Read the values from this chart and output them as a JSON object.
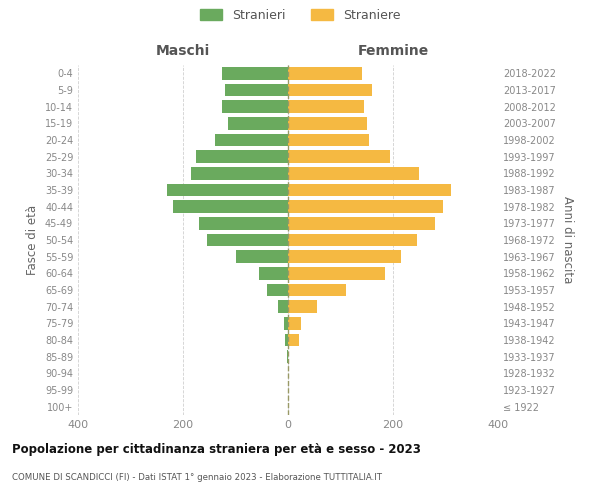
{
  "age_groups": [
    "100+",
    "95-99",
    "90-94",
    "85-89",
    "80-84",
    "75-79",
    "70-74",
    "65-69",
    "60-64",
    "55-59",
    "50-54",
    "45-49",
    "40-44",
    "35-39",
    "30-34",
    "25-29",
    "20-24",
    "15-19",
    "10-14",
    "5-9",
    "0-4"
  ],
  "birth_years": [
    "≤ 1922",
    "1923-1927",
    "1928-1932",
    "1933-1937",
    "1938-1942",
    "1943-1947",
    "1948-1952",
    "1953-1957",
    "1958-1962",
    "1963-1967",
    "1968-1972",
    "1973-1977",
    "1978-1982",
    "1983-1987",
    "1988-1992",
    "1993-1997",
    "1998-2002",
    "2003-2007",
    "2008-2012",
    "2013-2017",
    "2018-2022"
  ],
  "maschi": [
    0,
    0,
    0,
    2,
    5,
    8,
    20,
    40,
    55,
    100,
    155,
    170,
    220,
    230,
    185,
    175,
    140,
    115,
    125,
    120,
    125
  ],
  "femmine": [
    0,
    0,
    0,
    0,
    20,
    25,
    55,
    110,
    185,
    215,
    245,
    280,
    295,
    310,
    250,
    195,
    155,
    150,
    145,
    160,
    140
  ],
  "color_maschi": "#6aaa5e",
  "color_femmine": "#f5b942",
  "title": "Popolazione per cittadinanza straniera per età e sesso - 2023",
  "subtitle": "COMUNE DI SCANDICCI (FI) - Dati ISTAT 1° gennaio 2023 - Elaborazione TUTTITALIA.IT",
  "xlabel_left": "Maschi",
  "xlabel_right": "Femmine",
  "ylabel_left": "Fasce di età",
  "ylabel_right": "Anni di nascita",
  "legend_maschi": "Stranieri",
  "legend_femmine": "Straniere",
  "xlim": 400,
  "background_color": "#ffffff",
  "grid_color": "#d0d0d0"
}
